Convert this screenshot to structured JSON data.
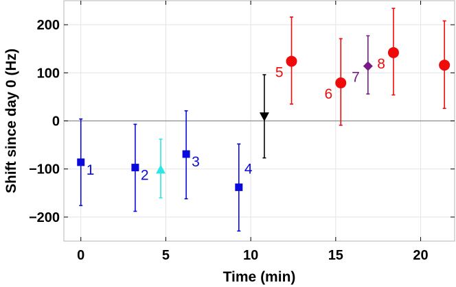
{
  "chart_data": {
    "type": "scatter",
    "title": "",
    "xlabel": "Time (min)",
    "ylabel": "Shift since day 0 (Hz)",
    "xlim": [
      -1.0,
      22.0
    ],
    "ylim": [
      -250,
      250
    ],
    "xticks": [
      0,
      5,
      10,
      15,
      20
    ],
    "yticks": [
      -200,
      -100,
      0,
      100,
      200
    ],
    "grid": true,
    "zero_line": true,
    "error_bars": "vertical",
    "points": [
      {
        "x": 0.0,
        "y": -86,
        "err_low": -176,
        "err_high": 4,
        "marker": "square",
        "color": "#0a0adc",
        "label": "1"
      },
      {
        "x": 3.2,
        "y": -97,
        "err_low": -188,
        "err_high": -7,
        "marker": "square",
        "color": "#0a0adc",
        "label": "2"
      },
      {
        "x": 4.7,
        "y": -101,
        "err_low": -160,
        "err_high": -38,
        "marker": "triangle-up",
        "color": "#2ee6e6",
        "label": ""
      },
      {
        "x": 6.2,
        "y": -69,
        "err_low": -162,
        "err_high": 21,
        "marker": "square",
        "color": "#0a0adc",
        "label": "3"
      },
      {
        "x": 9.3,
        "y": -138,
        "err_low": -229,
        "err_high": -48,
        "marker": "square",
        "color": "#0a0adc",
        "label": "4"
      },
      {
        "x": 10.8,
        "y": 9,
        "err_low": -77,
        "err_high": 96,
        "marker": "triangle-down",
        "color": "#000000",
        "label": ""
      },
      {
        "x": 12.4,
        "y": 124,
        "err_low": 35,
        "err_high": 216,
        "marker": "circle",
        "color": "#f00a0a",
        "label": "5"
      },
      {
        "x": 15.3,
        "y": 79,
        "err_low": -9,
        "err_high": 171,
        "marker": "circle",
        "color": "#f00a0a",
        "label": "6"
      },
      {
        "x": 16.9,
        "y": 114,
        "err_low": 56,
        "err_high": 177,
        "marker": "diamond",
        "color": "#7a1a8a",
        "label": "7"
      },
      {
        "x": 18.4,
        "y": 142,
        "err_low": 54,
        "err_high": 234,
        "marker": "circle",
        "color": "#f00a0a",
        "label": "8"
      },
      {
        "x": 21.4,
        "y": 116,
        "err_low": 26,
        "err_high": 208,
        "marker": "circle",
        "color": "#f00a0a",
        "label": ""
      }
    ]
  }
}
